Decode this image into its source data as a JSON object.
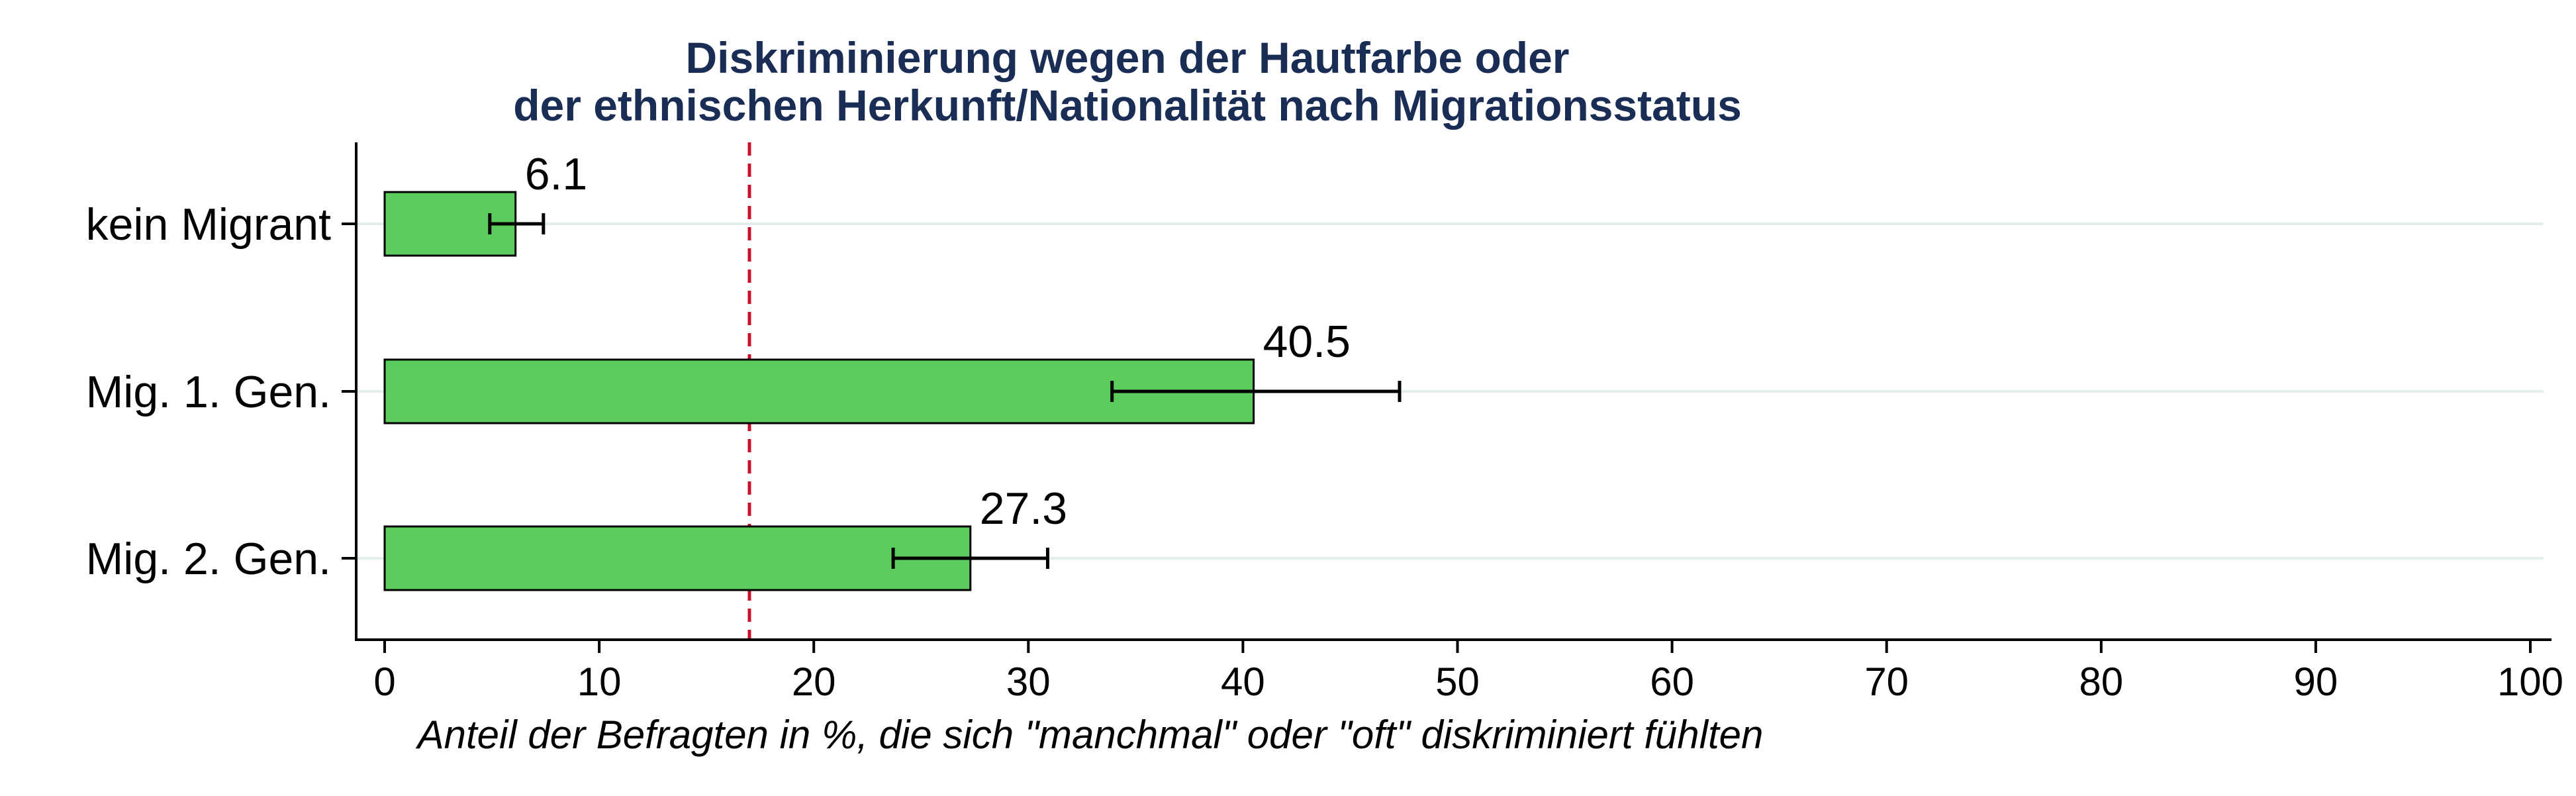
{
  "chart_data": {
    "type": "bar",
    "orientation": "horizontal",
    "title": [
      "Diskriminierung wegen der Hautfarbe oder",
      "der ethnischen Herkunft/Nationalität nach Migrationsstatus"
    ],
    "xlabel": "Anteil der Befragten in %, die sich \"manchmal\" oder \"oft\" diskriminiert fühlten",
    "ylabel": "",
    "categories": [
      "kein Migrant",
      "Mig. 1. Gen.",
      "Mig. 2. Gen."
    ],
    "values": [
      6.1,
      40.5,
      27.3
    ],
    "value_labels": [
      "6.1",
      "40.5",
      "27.3"
    ],
    "error_low": [
      4.9,
      33.9,
      23.7
    ],
    "error_high": [
      7.4,
      47.3,
      30.9
    ],
    "reference_line": 17,
    "xlim": [
      0,
      100
    ],
    "xticks": [
      0,
      10,
      20,
      30,
      40,
      50,
      60,
      70,
      80,
      90,
      100
    ],
    "grid": true,
    "colors": {
      "bar_fill": "#5ccd5c",
      "bar_stroke": "#000000",
      "reference_line": "#c8102e",
      "gridline": "#e3efef",
      "title": "#1a2d55",
      "axis": "#000000"
    }
  }
}
